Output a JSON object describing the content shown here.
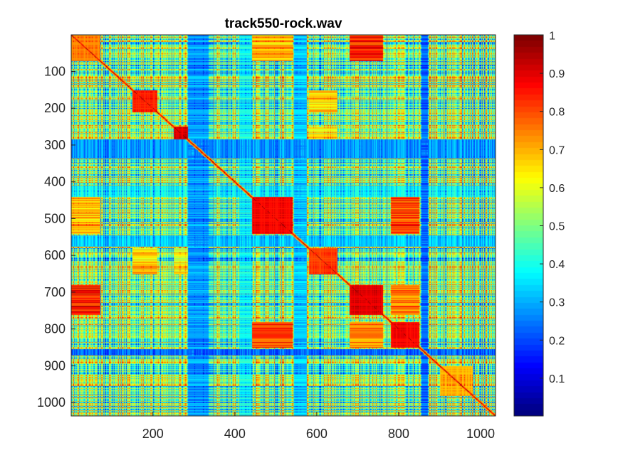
{
  "chart_data": {
    "type": "heatmap",
    "title": "track550-rock.wav",
    "xlabel": "",
    "ylabel": "",
    "xlim": [
      1,
      1036
    ],
    "ylim": [
      1,
      1036
    ],
    "y_reversed": true,
    "x_ticks": [
      200,
      400,
      600,
      800,
      1000
    ],
    "x_tick_labels": [
      "200",
      "400",
      "600",
      "800",
      "1000"
    ],
    "y_ticks": [
      100,
      200,
      300,
      400,
      500,
      600,
      700,
      800,
      900,
      1000
    ],
    "y_tick_labels": [
      "100",
      "200",
      "300",
      "400",
      "500",
      "600",
      "700",
      "800",
      "900",
      "1000"
    ],
    "colormap": "jet",
    "clim": [
      0,
      1
    ],
    "colorbar": {
      "ticks": [
        0.1,
        0.2,
        0.3,
        0.4,
        0.5,
        0.6,
        0.7,
        0.8,
        0.9,
        1
      ],
      "tick_labels": [
        "0.1",
        "0.2",
        "0.3",
        "0.4",
        "0.5",
        "0.6",
        "0.7",
        "0.8",
        "0.9",
        "1"
      ],
      "position": "right"
    },
    "matrix_description": "self-similarity matrix, value 1 on diagonal",
    "segments": [
      {
        "range": [
          1,
          70
        ],
        "level": 0.75
      },
      {
        "range": [
          150,
          210
        ],
        "level": 0.85
      },
      {
        "range": [
          250,
          310
        ],
        "level": 0.9
      },
      {
        "range": [
          440,
          540
        ],
        "level": 0.88
      },
      {
        "range": [
          580,
          650
        ],
        "level": 0.82
      },
      {
        "range": [
          680,
          760
        ],
        "level": 0.9
      },
      {
        "range": [
          780,
          850
        ],
        "level": 0.88
      },
      {
        "range": [
          900,
          980
        ],
        "level": 0.7
      }
    ],
    "related_blocks": [
      {
        "a": [
          1,
          70
        ],
        "b": [
          680,
          760
        ],
        "level": 0.85
      },
      {
        "a": [
          440,
          540
        ],
        "b": [
          780,
          850
        ],
        "level": 0.82
      },
      {
        "a": [
          1,
          70
        ],
        "b": [
          440,
          540
        ],
        "level": 0.7
      },
      {
        "a": [
          150,
          210
        ],
        "b": [
          580,
          650
        ],
        "level": 0.68
      },
      {
        "a": [
          680,
          760
        ],
        "b": [
          780,
          850
        ],
        "level": 0.75
      },
      {
        "a": [
          250,
          310
        ],
        "b": [
          580,
          650
        ],
        "level": 0.62
      }
    ],
    "low_bands": [
      {
        "range": [
          285,
          335
        ],
        "level": 0.2
      },
      {
        "range": [
          545,
          575
        ],
        "level": 0.25
      },
      {
        "range": [
          855,
          870
        ],
        "level": 0.15
      },
      {
        "range": [
          410,
          440
        ],
        "level": 0.3
      }
    ]
  }
}
